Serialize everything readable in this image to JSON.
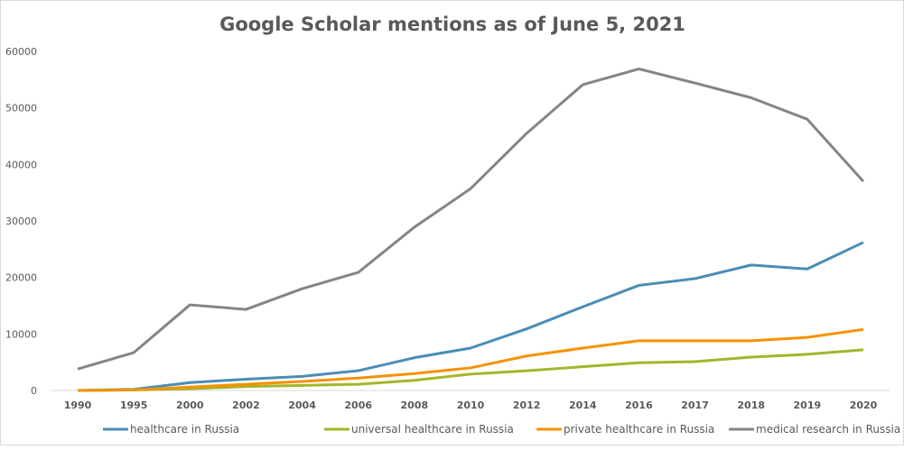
{
  "chart_data": {
    "type": "line",
    "title": "Google Scholar mentions as of June 5, 2021",
    "xlabel": "",
    "ylabel": "",
    "categories": [
      "1990",
      "1995",
      "2000",
      "2002",
      "2004",
      "2006",
      "2008",
      "2010",
      "2012",
      "2014",
      "2016",
      "2017",
      "2018",
      "2019",
      "2020"
    ],
    "ylim": [
      0,
      60000
    ],
    "yticks": [
      0,
      10000,
      20000,
      30000,
      40000,
      50000,
      60000
    ],
    "grid": false,
    "legend": "bottom",
    "series": [
      {
        "name": "healthcare in Russia",
        "color": "#4a8db5",
        "values": [
          0,
          200,
          1400,
          2000,
          2500,
          3500,
          5800,
          7500,
          10900,
          14800,
          18600,
          19800,
          22200,
          21500,
          26200
        ]
      },
      {
        "name": "universal healthcare in Russia",
        "color": "#a5b52a",
        "values": [
          0,
          100,
          300,
          700,
          900,
          1100,
          1800,
          2900,
          3500,
          4200,
          4900,
          5100,
          5900,
          6400,
          7200
        ]
      },
      {
        "name": "private healthcare in Russia",
        "color": "#f59200",
        "values": [
          0,
          100,
          600,
          1100,
          1600,
          2200,
          3000,
          4000,
          6100,
          7500,
          8800,
          8800,
          8800,
          9400,
          10800
        ]
      },
      {
        "name": "medical research in Russia",
        "color": "#858585",
        "values": [
          3800,
          6700,
          15150,
          14350,
          18000,
          20900,
          28900,
          35700,
          45500,
          54100,
          56900,
          54400,
          51800,
          48000,
          37000
        ]
      }
    ]
  }
}
